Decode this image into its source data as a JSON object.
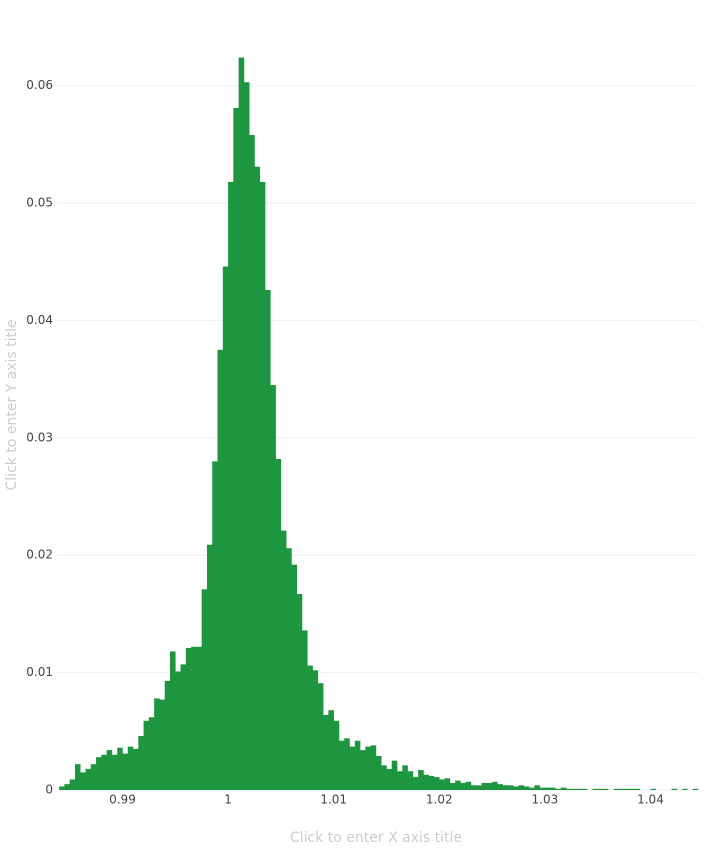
{
  "chart_data": {
    "type": "histogram",
    "color": "#1e9640",
    "grid": true,
    "x_title": "Click to enter X axis title",
    "y_title": "Click to enter Y axis title",
    "bins": [
      0.984,
      0.9845,
      0.985,
      0.9855,
      0.986,
      0.9865,
      0.987,
      0.9875,
      0.988,
      0.9885,
      0.989,
      0.9895,
      0.99,
      0.9905,
      0.991,
      0.9915,
      0.992,
      0.9925,
      0.993,
      0.9935,
      0.994,
      0.9945,
      0.995,
      0.9955,
      0.996,
      0.9965,
      0.997,
      0.9975,
      0.998,
      0.9985,
      0.999,
      0.9995,
      1.0,
      1.0005,
      1.001,
      1.0015,
      1.002,
      1.0025,
      1.003,
      1.0035,
      1.004,
      1.0045,
      1.005,
      1.0055,
      1.006,
      1.0065,
      1.007,
      1.0075,
      1.008,
      1.0085,
      1.009,
      1.0095,
      1.01,
      1.0105,
      1.011,
      1.0115,
      1.012,
      1.0125,
      1.013,
      1.0135,
      1.014,
      1.0145,
      1.015,
      1.0155,
      1.016,
      1.0165,
      1.017,
      1.0175,
      1.018,
      1.0185,
      1.019,
      1.0195,
      1.02,
      1.0205,
      1.021,
      1.0215,
      1.022,
      1.0225,
      1.023,
      1.0235,
      1.024,
      1.0245,
      1.025,
      1.0255,
      1.026,
      1.0265,
      1.027,
      1.0275,
      1.028,
      1.0285,
      1.029,
      1.0295,
      1.03,
      1.0305,
      1.031,
      1.0315,
      1.032,
      1.0325,
      1.033,
      1.0335,
      1.034,
      1.0345,
      1.035,
      1.0355,
      1.036,
      1.0365,
      1.037,
      1.0375,
      1.038,
      1.0385,
      1.039,
      1.0395,
      1.04,
      1.0405,
      1.041,
      1.0415,
      1.042,
      1.0425,
      1.043,
      1.0435,
      1.044,
      1.0445
    ],
    "counts": [
      0.0003,
      0.0005,
      0.0009,
      0.0022,
      0.0015,
      0.0018,
      0.0022,
      0.0028,
      0.003,
      0.0034,
      0.003,
      0.0036,
      0.0031,
      0.0037,
      0.0035,
      0.0046,
      0.0059,
      0.0062,
      0.0078,
      0.0077,
      0.0093,
      0.0118,
      0.0101,
      0.0107,
      0.0121,
      0.0122,
      0.0122,
      0.0171,
      0.0209,
      0.028,
      0.0375,
      0.0446,
      0.0518,
      0.0581,
      0.0624,
      0.0603,
      0.0558,
      0.0531,
      0.0518,
      0.0426,
      0.0345,
      0.0282,
      0.0221,
      0.0206,
      0.0192,
      0.0167,
      0.0136,
      0.0106,
      0.0102,
      0.0091,
      0.0064,
      0.0068,
      0.0059,
      0.0042,
      0.0044,
      0.0037,
      0.0042,
      0.0034,
      0.0037,
      0.0038,
      0.0029,
      0.0021,
      0.0018,
      0.0025,
      0.0016,
      0.0021,
      0.0016,
      0.0011,
      0.0017,
      0.0013,
      0.0012,
      0.0011,
      0.0009,
      0.001,
      0.0006,
      0.0008,
      0.0006,
      0.0007,
      0.0004,
      0.0004,
      0.0006,
      0.0006,
      0.0007,
      0.0005,
      0.0004,
      0.0004,
      0.0003,
      0.0004,
      0.0003,
      0.0002,
      0.0004,
      0.0002,
      0.0002,
      0.0002,
      0.0001,
      0.0002,
      0.0001,
      0.0001,
      0.0001,
      0.0001,
      0,
      0.0001,
      0.0001,
      0.0001,
      0,
      0.0001,
      0.0001,
      0.0001,
      0.0001,
      0.0001,
      0,
      0,
      0.0001,
      0,
      0,
      0,
      0.0001,
      0,
      0.0001,
      0,
      0.0001
    ],
    "xlim": [
      0.9838,
      1.0445
    ],
    "xticks": [
      0.99,
      1,
      1.01,
      1.02,
      1.03,
      1.04
    ],
    "ylim": [
      0,
      0.0656
    ],
    "yticks": [
      0,
      0.01,
      0.02,
      0.03,
      0.04,
      0.05,
      0.06
    ]
  }
}
